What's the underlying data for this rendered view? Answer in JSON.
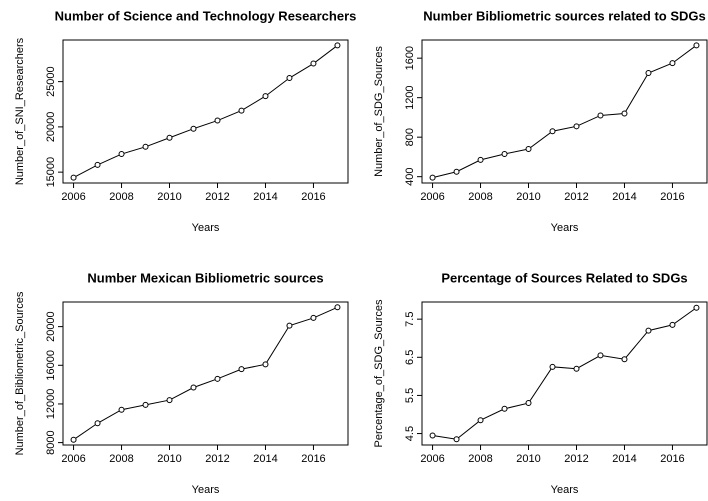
{
  "chart_data": [
    {
      "type": "line",
      "title": "Number of Science and Technology Researchers",
      "x_label": "Years",
      "y_label": "Number_of_SNI_Researchers",
      "x": [
        2006,
        2007,
        2008,
        2009,
        2010,
        2011,
        2012,
        2013,
        2014,
        2015,
        2016,
        2017
      ],
      "values": [
        14400,
        15800,
        17000,
        17800,
        18800,
        19800,
        20700,
        21800,
        23400,
        25400,
        27000,
        29000
      ],
      "color": "#000000",
      "xlim": [
        2005.56,
        2017.44
      ],
      "xticks": [
        2006,
        2008,
        2010,
        2012,
        2014,
        2016
      ],
      "ylim": [
        13800,
        29600
      ],
      "yticks": [
        15000,
        20000,
        25000
      ]
    },
    {
      "type": "line",
      "title": "Number Bibliometric sources related to SDGs",
      "x_label": "Years",
      "y_label": "Number_of_SDG_Sources",
      "x": [
        2006,
        2007,
        2008,
        2009,
        2010,
        2011,
        2012,
        2013,
        2014,
        2015,
        2016,
        2017
      ],
      "values": [
        390,
        450,
        570,
        630,
        680,
        860,
        910,
        1020,
        1040,
        1450,
        1550,
        1730
      ],
      "color": "#000000",
      "xlim": [
        2005.56,
        2017.44
      ],
      "xticks": [
        2006,
        2008,
        2010,
        2012,
        2014,
        2016
      ],
      "ylim": [
        336,
        1784
      ],
      "yticks": [
        400,
        800,
        1200,
        1600
      ]
    },
    {
      "type": "line",
      "title": "Number Mexican Bibliometric sources",
      "x_label": "Years",
      "y_label": "Number_of_Bibliometric_Sources",
      "x": [
        2006,
        2007,
        2008,
        2009,
        2010,
        2011,
        2012,
        2013,
        2014,
        2015,
        2016,
        2017
      ],
      "values": [
        8300,
        10000,
        11400,
        11900,
        12400,
        13700,
        14600,
        15600,
        16100,
        20100,
        20900,
        22000
      ],
      "color": "#000000",
      "xlim": [
        2005.56,
        2017.44
      ],
      "xticks": [
        2006,
        2008,
        2010,
        2012,
        2014,
        2016
      ],
      "ylim": [
        7752,
        22548
      ],
      "yticks": [
        8000,
        12000,
        16000,
        20000
      ]
    },
    {
      "type": "line",
      "title": "Percentage of Sources Related to SDGs",
      "x_label": "Years",
      "y_label": "Percentage_of_SDG_Sources",
      "x": [
        2006,
        2007,
        2008,
        2009,
        2010,
        2011,
        2012,
        2013,
        2014,
        2015,
        2016,
        2017
      ],
      "values": [
        4.45,
        4.35,
        4.85,
        5.15,
        5.3,
        6.25,
        6.2,
        6.55,
        6.45,
        7.2,
        7.35,
        7.8
      ],
      "color": "#000000",
      "xlim": [
        2005.56,
        2017.44
      ],
      "xticks": [
        2006,
        2008,
        2010,
        2012,
        2014,
        2016
      ],
      "ylim": [
        4.2,
        7.95
      ],
      "yticks": [
        4.5,
        5.5,
        6.5,
        7.5
      ]
    }
  ]
}
